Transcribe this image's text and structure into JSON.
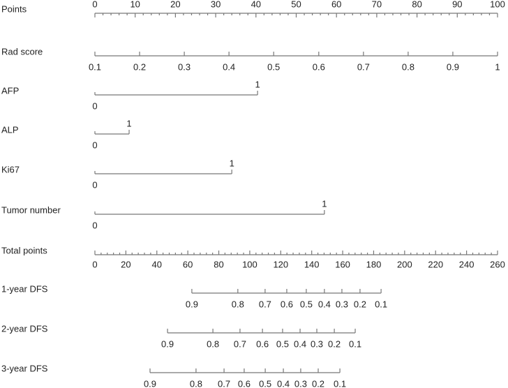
{
  "chart_data": {
    "type": "nomogram",
    "minor_divisions": 5,
    "rows": [
      {
        "label": "Points",
        "kind": "axis",
        "axis": "points",
        "xlim": [
          0,
          100
        ],
        "ticks": [
          0,
          10,
          20,
          30,
          40,
          50,
          60,
          70,
          80,
          90,
          100
        ]
      },
      {
        "label": "Rad score",
        "kind": "scale",
        "axis": "points",
        "values": [
          0.1,
          0.2,
          0.3,
          0.4,
          0.5,
          0.6,
          0.7,
          0.8,
          0.9,
          1
        ],
        "points": [
          0,
          11.1,
          22.2,
          33.3,
          44.4,
          55.6,
          66.7,
          77.8,
          88.9,
          100
        ]
      },
      {
        "label": "AFP",
        "kind": "scale",
        "axis": "points",
        "values": [
          0,
          1
        ],
        "points": [
          0,
          40.4
        ]
      },
      {
        "label": "ALP",
        "kind": "scale",
        "axis": "points",
        "values": [
          0,
          1
        ],
        "points": [
          0,
          8.5
        ]
      },
      {
        "label": "Ki67",
        "kind": "scale",
        "axis": "points",
        "values": [
          0,
          1
        ],
        "points": [
          0,
          34
        ]
      },
      {
        "label": "Tumor number",
        "kind": "scale",
        "axis": "points",
        "values": [
          0,
          1
        ],
        "points": [
          0,
          57
        ]
      },
      {
        "label": "Total points",
        "kind": "axis",
        "axis": "total",
        "xlim": [
          0,
          260
        ],
        "ticks": [
          0,
          20,
          40,
          60,
          80,
          100,
          120,
          140,
          160,
          180,
          200,
          220,
          240,
          260
        ]
      },
      {
        "label": "1-year DFS",
        "kind": "scale",
        "axis": "total",
        "values": [
          0.9,
          0.8,
          0.7,
          0.6,
          0.5,
          0.4,
          0.3,
          0.2,
          0.1
        ],
        "points": [
          62.6,
          92.3,
          109.9,
          123.9,
          136.5,
          148.2,
          159.5,
          171.2,
          184.8
        ]
      },
      {
        "label": "2-year DFS",
        "kind": "scale",
        "axis": "total",
        "values": [
          0.9,
          0.8,
          0.7,
          0.6,
          0.5,
          0.4,
          0.3,
          0.2,
          0.1
        ],
        "points": [
          46.9,
          76.2,
          93.7,
          108.2,
          121.2,
          132.5,
          143.3,
          154.6,
          168.1
        ]
      },
      {
        "label": "3-year DFS",
        "kind": "scale",
        "axis": "total",
        "values": [
          0.9,
          0.8,
          0.7,
          0.6,
          0.5,
          0.4,
          0.3,
          0.2,
          0.1
        ],
        "points": [
          35.6,
          65.3,
          83.4,
          96.4,
          110.0,
          121.7,
          132.9,
          144.2,
          158.2
        ]
      }
    ]
  }
}
